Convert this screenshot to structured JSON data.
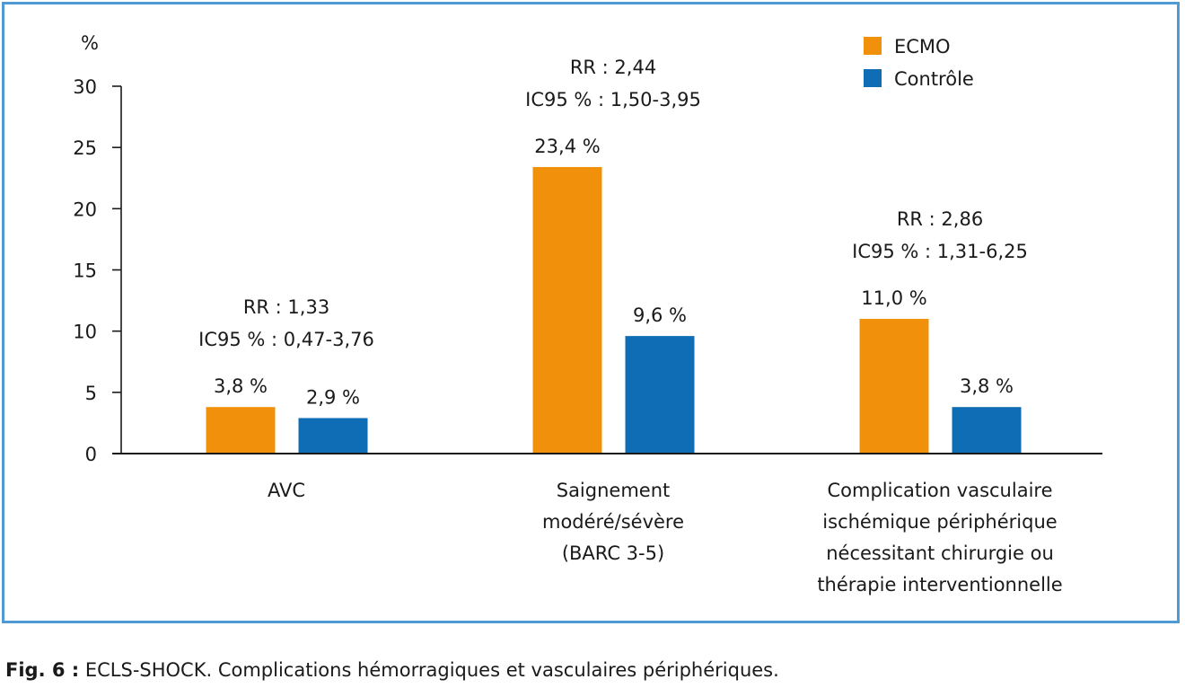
{
  "chart_data": {
    "type": "bar",
    "ylabel": "%",
    "ylim": [
      0,
      30
    ],
    "yticks": [
      "0",
      "5",
      "10",
      "15",
      "20",
      "25",
      "30"
    ],
    "categories": [
      [
        "AVC"
      ],
      [
        "Saignement",
        "modéré/sévère",
        "(BARC 3-5)"
      ],
      [
        "Complication vasculaire",
        "ischémique périphérique",
        "nécessitant chirurgie ou",
        "thérapie interventionnelle"
      ]
    ],
    "series": [
      {
        "name": "ECMO",
        "color": "#f0900b",
        "values": [
          3.8,
          23.4,
          11.0
        ],
        "labels": [
          "3,8 %",
          "23,4 %",
          "11,0 %"
        ]
      },
      {
        "name": "Contrôle",
        "color": "#0e6db4",
        "values": [
          2.9,
          9.6,
          3.8
        ],
        "labels": [
          "2,9 %",
          "9,6 %",
          "3,8 %"
        ]
      }
    ],
    "annotations": [
      [
        "RR : 1,33",
        "IC95 % : 0,47-3,76"
      ],
      [
        "RR : 2,44",
        "IC95 % : 1,50-3,95"
      ],
      [
        "RR : 2,86",
        "IC95 % : 1,31-6,25"
      ]
    ],
    "legend_position": "top-right",
    "grid": false
  },
  "caption": {
    "label": "Fig. 6 :",
    "text": " ECLS-SHOCK. Complications hémorragiques et vasculaires périphériques."
  }
}
